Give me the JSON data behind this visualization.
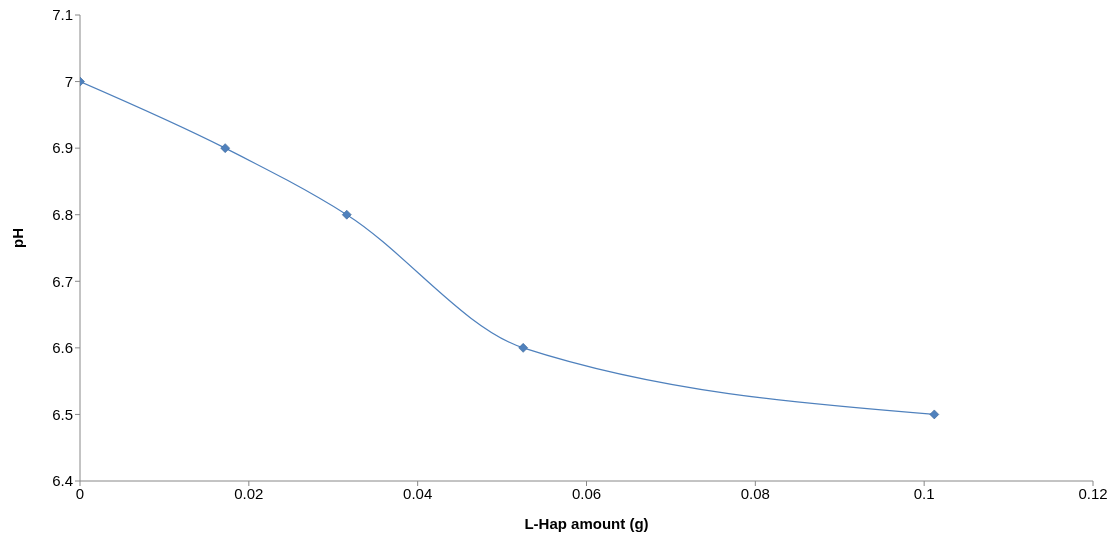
{
  "chart_data": {
    "type": "line",
    "xlabel": "L-Hap amount (g)",
    "ylabel": "pH",
    "x": [
      0,
      0.0172,
      0.0316,
      0.0525,
      0.1012
    ],
    "series": [
      {
        "color": "#4f81bd",
        "values": [
          7,
          6.9,
          6.8,
          6.6,
          6.5
        ]
      }
    ],
    "xlim": [
      0,
      0.12
    ],
    "xticks": [
      0,
      0.02,
      0.04,
      0.06,
      0.08,
      0.1,
      0.12
    ],
    "ylim": [
      6.4,
      7.1
    ],
    "yticks": [
      6.4,
      6.5,
      6.6,
      6.7,
      6.8,
      6.9,
      7,
      7.1
    ],
    "grid": false,
    "legend": false,
    "marker": "diamond",
    "line_style": "solid"
  }
}
